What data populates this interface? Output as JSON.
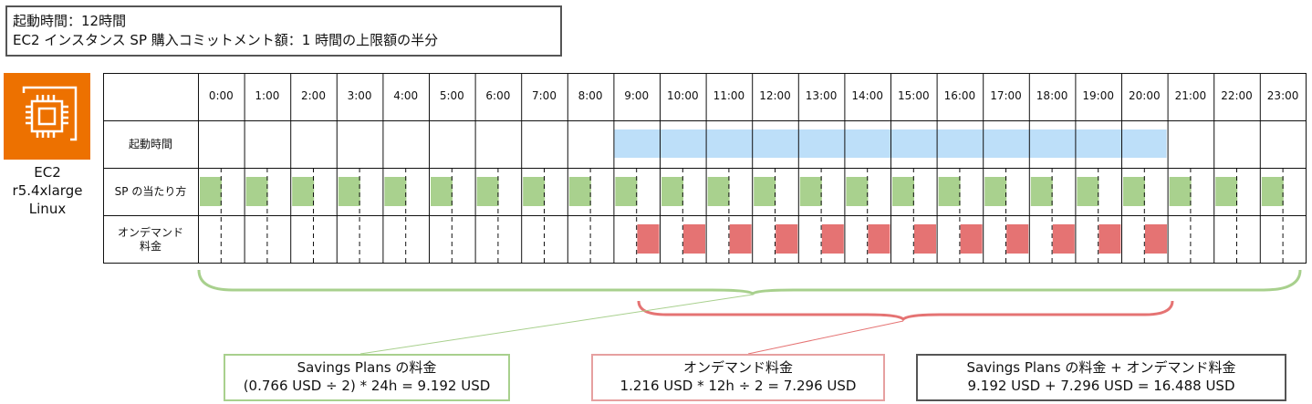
{
  "note": {
    "line1": "起動時間：12時間",
    "line2": "EC2 インスタンス SP 購入コミットメント額：1 時間の上限額の半分"
  },
  "ec2": {
    "icon": "ec2-chip-icon",
    "icon_color": "#ED7100",
    "label_lines": [
      "EC2",
      "r5.4xlarge",
      "Linux"
    ]
  },
  "table": {
    "hours": [
      "0:00",
      "1:00",
      "2:00",
      "3:00",
      "4:00",
      "5:00",
      "6:00",
      "7:00",
      "8:00",
      "9:00",
      "10:00",
      "11:00",
      "12:00",
      "13:00",
      "14:00",
      "15:00",
      "16:00",
      "17:00",
      "18:00",
      "19:00",
      "20:00",
      "21:00",
      "22:00",
      "23:00"
    ],
    "rows": {
      "runtime": "起動時間",
      "sp": "SP の当たり方",
      "ondemand_line1": "オンデマンド",
      "ondemand_line2": "料金"
    },
    "runtime_hours": [
      9,
      20
    ],
    "sp_hours": [
      0,
      1,
      2,
      3,
      4,
      5,
      6,
      7,
      8,
      9,
      10,
      11,
      12,
      13,
      14,
      15,
      16,
      17,
      18,
      19,
      20,
      21,
      22,
      23
    ],
    "ondemand_hours": [
      9,
      10,
      11,
      12,
      13,
      14,
      15,
      16,
      17,
      18,
      19,
      20
    ],
    "colors": {
      "runtime": "#bddff9",
      "sp": "#a9d18e",
      "ondemand": "#e57373"
    }
  },
  "boxes": {
    "sp": {
      "title": "Savings Plans の料金",
      "formula": "(0.766 USD ÷ 2) * 24h = 9.192 USD",
      "color": "#a8d08d"
    },
    "ondemand": {
      "title": "オンデマンド料金",
      "formula": "1.216 USD * 12h ÷ 2 = 7.296 USD",
      "color": "#e6a0a0"
    },
    "total": {
      "title": "Savings Plans の料金 + オンデマンド料金",
      "formula": "9.192 USD + 7.296 USD = 16.488 USD"
    }
  }
}
